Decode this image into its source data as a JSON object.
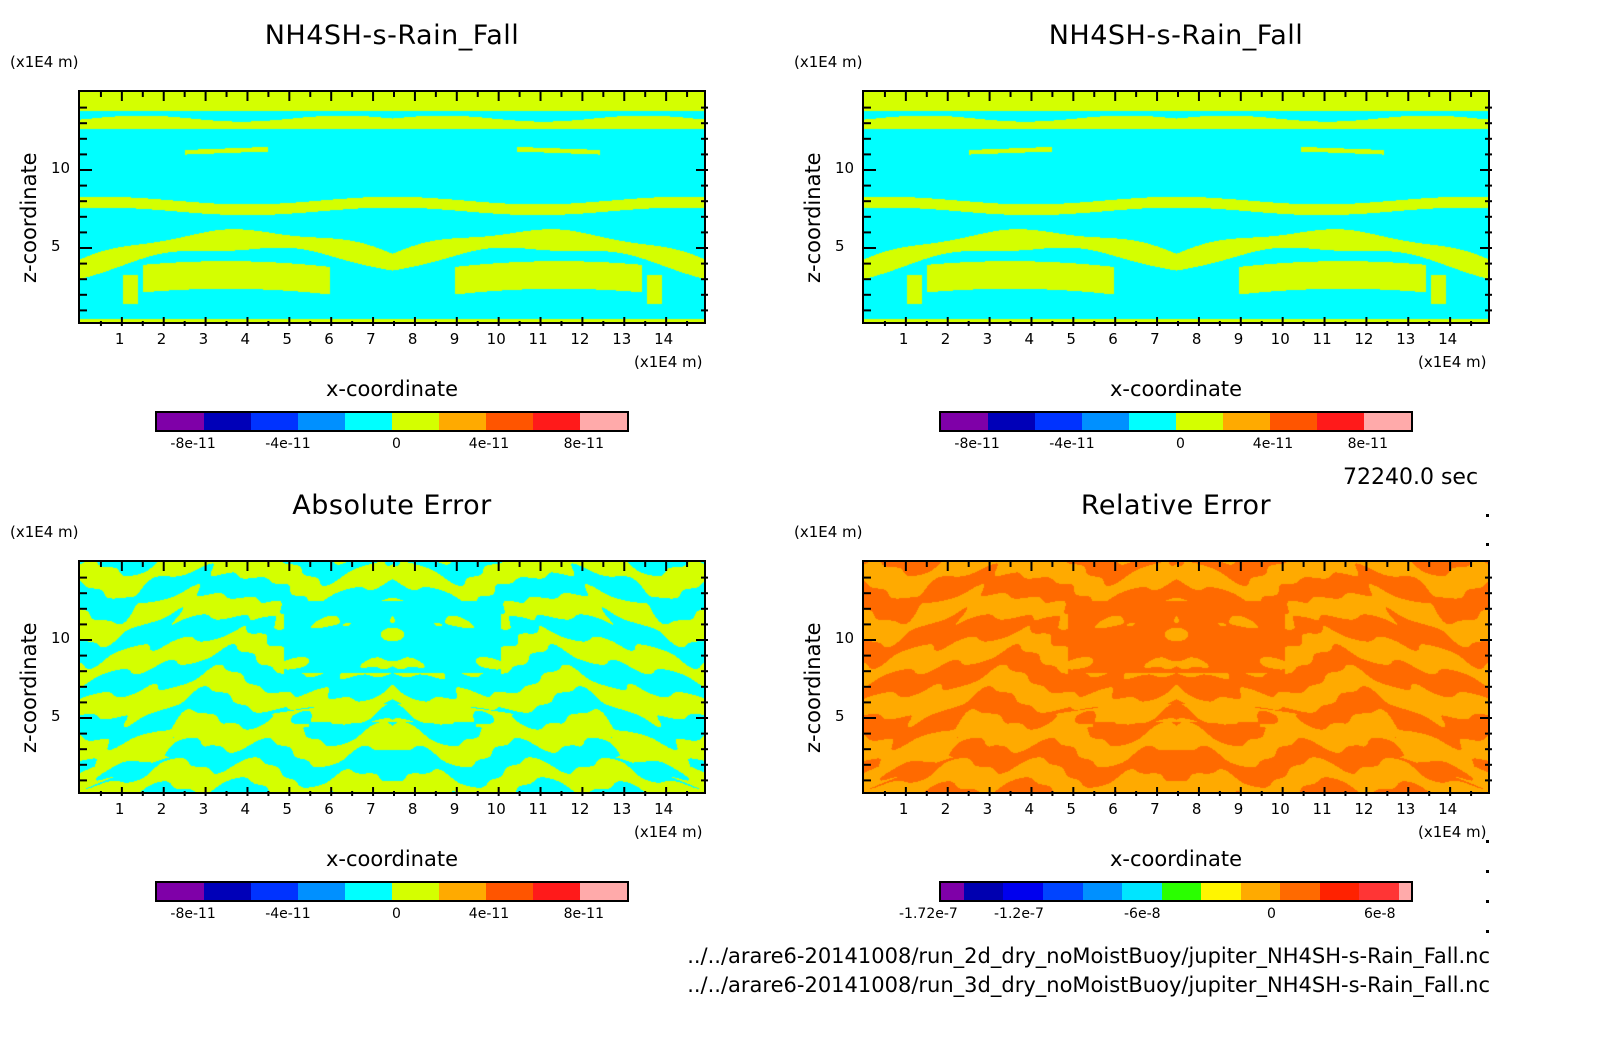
{
  "time_label": "72240.0 sec",
  "file_paths": [
    "../../arare6-20141008/run_2d_dry_noMoistBuoy/jupiter_NH4SH-s-Rain_Fall.nc",
    "../../arare6-20141008/run_3d_dry_noMoistBuoy/jupiter_NH4SH-s-Rain_Fall.nc"
  ],
  "chart_data": [
    {
      "type": "heatmap",
      "title": "NH4SH-s-Rain_Fall",
      "xlabel": "x-coordinate",
      "ylabel": "z-coordinate",
      "x_unit": "(x1E4 m)",
      "y_unit": "(x1E4 m)",
      "xlim": [
        0,
        15
      ],
      "ylim": [
        0,
        15
      ],
      "x_ticks": [
        "1",
        "2",
        "3",
        "4",
        "5",
        "6",
        "7",
        "8",
        "9",
        "10",
        "11",
        "12",
        "13",
        "14"
      ],
      "y_ticks": [
        "5",
        "10"
      ],
      "field_pattern": "run-2d",
      "dominant_levels": [
        "0 to 2e-11 (cyan/yellow-green boundary)"
      ],
      "colorbar": {
        "colors": [
          "#7f00a8",
          "#0000b8",
          "#0033ff",
          "#0090ff",
          "#00ffff",
          "#d4ff00",
          "#ffaa00",
          "#ff5500",
          "#ff1a1a",
          "#ffaaaa"
        ],
        "tick_labels": [
          "-8e-11",
          "-4e-11",
          "0",
          "4e-11",
          "8e-11"
        ]
      }
    },
    {
      "type": "heatmap",
      "title": "NH4SH-s-Rain_Fall",
      "xlabel": "x-coordinate",
      "ylabel": "z-coordinate",
      "x_unit": "(x1E4 m)",
      "y_unit": "(x1E4 m)",
      "xlim": [
        0,
        15
      ],
      "ylim": [
        0,
        15
      ],
      "x_ticks": [
        "1",
        "2",
        "3",
        "4",
        "5",
        "6",
        "7",
        "8",
        "9",
        "10",
        "11",
        "12",
        "13",
        "14"
      ],
      "y_ticks": [
        "5",
        "10"
      ],
      "field_pattern": "run-3d",
      "dominant_levels": [
        "0 to 2e-11 (cyan/yellow-green boundary)"
      ],
      "colorbar": {
        "colors": [
          "#7f00a8",
          "#0000b8",
          "#0033ff",
          "#0090ff",
          "#00ffff",
          "#d4ff00",
          "#ffaa00",
          "#ff5500",
          "#ff1a1a",
          "#ffaaaa"
        ],
        "tick_labels": [
          "-8e-11",
          "-4e-11",
          "0",
          "4e-11",
          "8e-11"
        ]
      }
    },
    {
      "type": "heatmap",
      "title": "Absolute Error",
      "xlabel": "x-coordinate",
      "ylabel": "z-coordinate",
      "x_unit": "(x1E4 m)",
      "y_unit": "(x1E4 m)",
      "xlim": [
        0,
        15
      ],
      "ylim": [
        0,
        15
      ],
      "x_ticks": [
        "1",
        "2",
        "3",
        "4",
        "5",
        "6",
        "7",
        "8",
        "9",
        "10",
        "11",
        "12",
        "13",
        "14"
      ],
      "y_ticks": [
        "5",
        "10"
      ],
      "field_pattern": "abs-error",
      "dominant_levels": [
        "cyan (-2e-11..0)",
        "yellow-green (0..2e-11)"
      ],
      "colorbar": {
        "colors": [
          "#7f00a8",
          "#0000b8",
          "#0033ff",
          "#0090ff",
          "#00ffff",
          "#d4ff00",
          "#ffaa00",
          "#ff5500",
          "#ff1a1a",
          "#ffaaaa"
        ],
        "tick_labels": [
          "-8e-11",
          "-4e-11",
          "0",
          "4e-11",
          "8e-11"
        ]
      }
    },
    {
      "type": "heatmap",
      "title": "Relative Error",
      "xlabel": "x-coordinate",
      "ylabel": "z-coordinate",
      "x_unit": "(x1E4 m)",
      "y_unit": "(x1E4 m)",
      "xlim": [
        0,
        15
      ],
      "ylim": [
        0,
        15
      ],
      "x_ticks": [
        "1",
        "2",
        "3",
        "4",
        "5",
        "6",
        "7",
        "8",
        "9",
        "10",
        "11",
        "12",
        "13",
        "14"
      ],
      "y_ticks": [
        "5",
        "10"
      ],
      "field_pattern": "rel-error",
      "dominant_levels": [
        "orange (-2e-8..0)",
        "dark orange (0..2e-8)"
      ],
      "colorbar": {
        "colors": [
          "#7f00a8",
          "#0000b0",
          "#0000ee",
          "#0044ff",
          "#0090ff",
          "#00e5ff",
          "#2aff00",
          "#fff500",
          "#ffaa00",
          "#ff6a00",
          "#ff2200",
          "#ff3535",
          "#ffaaaa"
        ],
        "tick_labels": [
          "-1.72e-7",
          "-1.2e-7",
          "-6e-8",
          "0",
          "6e-8"
        ]
      }
    }
  ]
}
